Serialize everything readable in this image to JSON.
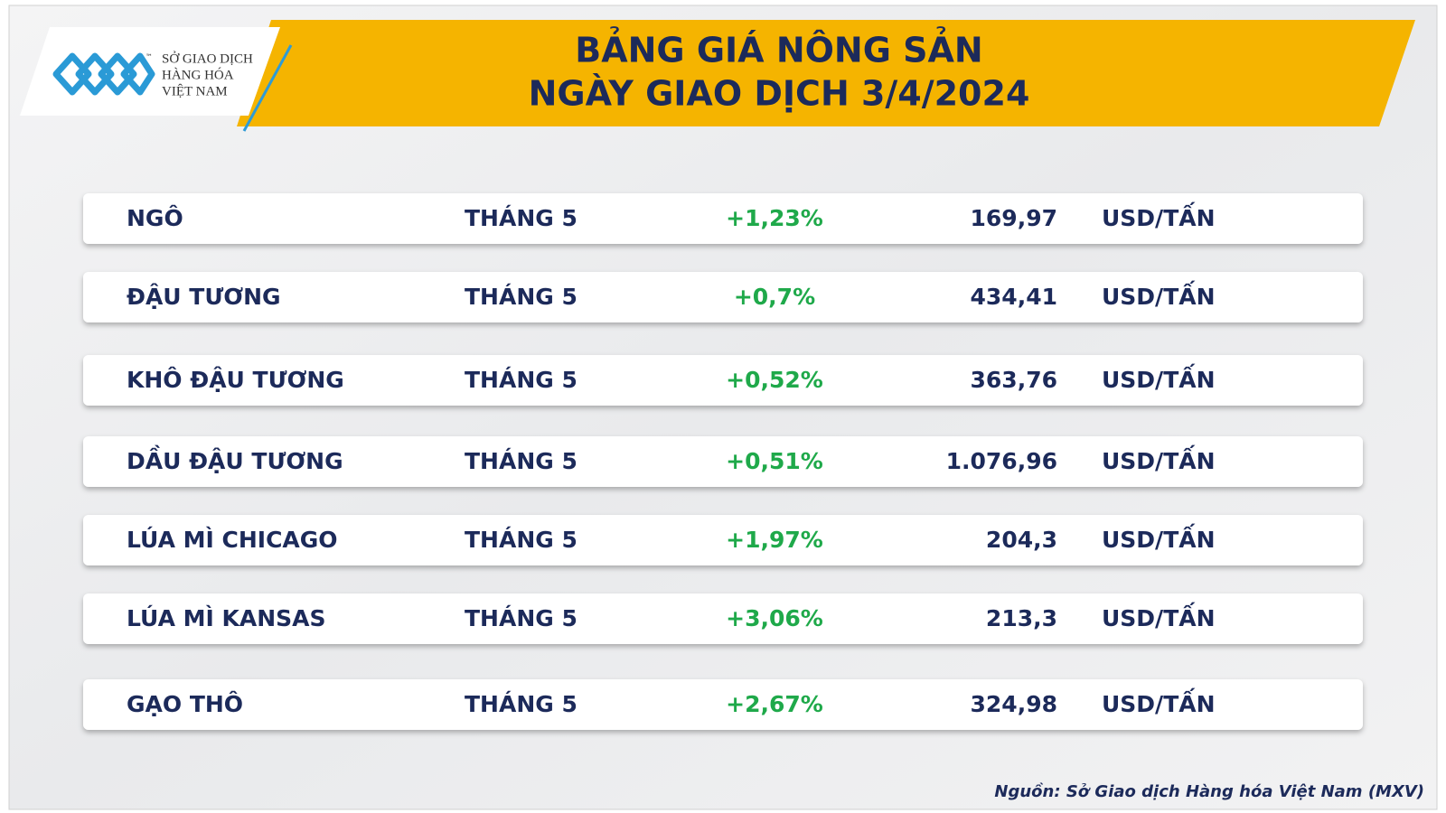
{
  "logo": {
    "mark": "™",
    "lines": [
      "SỞ GIAO DỊCH",
      "HÀNG HÓA",
      "VIỆT NAM"
    ]
  },
  "header": {
    "title_lines": [
      "BẢNG GIÁ NÔNG SẢN",
      "NGÀY GIAO DỊCH 3/4/2024"
    ]
  },
  "table": {
    "rows": [
      [
        "NGÔ",
        "THÁNG 5",
        "+1,23%",
        "169,97",
        "USD/TẤN"
      ],
      [
        "ĐẬU TƯƠNG",
        "THÁNG 5",
        "+0,7%",
        "434,41",
        "USD/TẤN"
      ],
      [
        "KHÔ ĐẬU TƯƠNG",
        "THÁNG 5",
        "+0,52%",
        "363,76",
        "USD/TẤN"
      ],
      [
        "DẦU ĐẬU TƯƠNG",
        "THÁNG 5",
        "+0,51%",
        "1.076,96",
        "USD/TẤN"
      ],
      [
        "LÚA MÌ CHICAGO",
        "THÁNG 5",
        "+1,97%",
        "204,3",
        "USD/TẤN"
      ],
      [
        "LÚA MÌ KANSAS",
        "THÁNG 5",
        "+3,06%",
        "213,3",
        "USD/TẤN"
      ],
      [
        "GẠO THÔ",
        "THÁNG 5",
        "+2,67%",
        "324,98",
        "USD/TẤN"
      ]
    ]
  },
  "source": "Nguồn: Sở Giao dịch Hàng hóa Việt Nam (MXV)"
}
